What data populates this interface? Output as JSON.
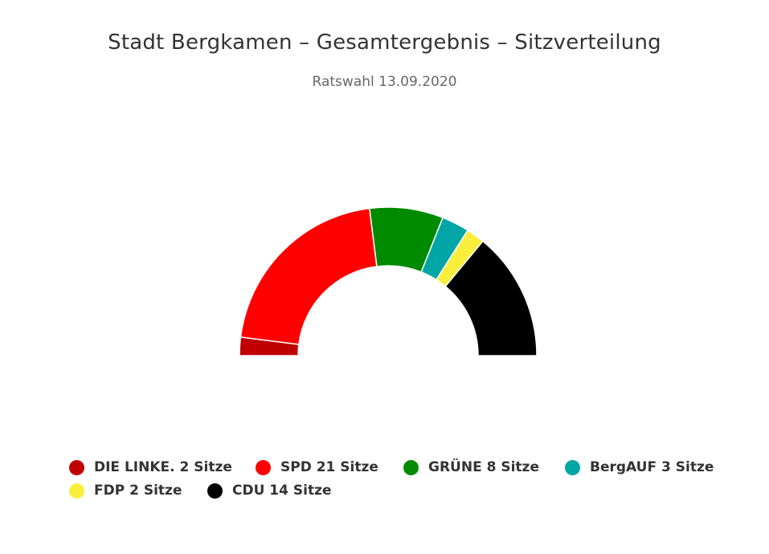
{
  "title": "Stadt Bergkamen – Gesamtergebnis – Sitzverteilung",
  "subtitle": "Ratswahl 13.09.2020",
  "chart_data": {
    "type": "pie",
    "variant": "semicircle-donut (parliament seat distribution)",
    "title": "Stadt Bergkamen – Gesamtergebnis – Sitzverteilung",
    "subtitle": "Ratswahl 13.09.2020",
    "unit": "Sitze",
    "legend_position": "bottom",
    "series": [
      {
        "name": "DIE LINKE.",
        "value": 2,
        "color": "#c00000",
        "label": "DIE LINKE. 2 Sitze"
      },
      {
        "name": "SPD",
        "value": 21,
        "color": "#ff0000",
        "label": "SPD 21 Sitze"
      },
      {
        "name": "GRÜNE",
        "value": 8,
        "color": "#008a00",
        "label": "GRÜNE 8 Sitze"
      },
      {
        "name": "BergAUF",
        "value": 3,
        "color": "#00a6a6",
        "label": "BergAUF 3 Sitze"
      },
      {
        "name": "FDP",
        "value": 2,
        "color": "#f9ee3b",
        "label": "FDP 2 Sitze"
      },
      {
        "name": "CDU",
        "value": 14,
        "color": "#000000",
        "label": "CDU 14 Sitze"
      }
    ]
  }
}
